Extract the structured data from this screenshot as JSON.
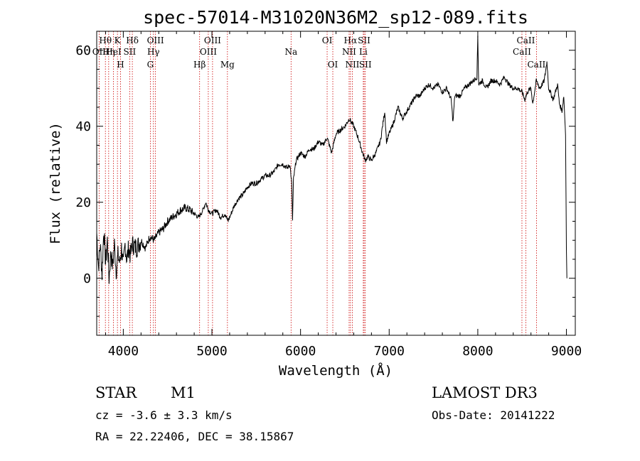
{
  "chart_data": {
    "type": "line",
    "title": "spec-57014-M31020N36M2_sp12-089.fits",
    "xlabel": "Wavelength (Å)",
    "ylabel": "Flux (relative)",
    "xlim": [
      3700,
      9100
    ],
    "ylim": [
      -15,
      65
    ],
    "x_ticks": [
      4000,
      5000,
      6000,
      7000,
      8000,
      9000
    ],
    "y_ticks": [
      0,
      20,
      40,
      60
    ],
    "series": [
      {
        "name": "flux",
        "points": [
          [
            3700,
            12
          ],
          [
            3720,
            3
          ],
          [
            3740,
            9
          ],
          [
            3760,
            1
          ],
          [
            3780,
            13
          ],
          [
            3800,
            4
          ],
          [
            3820,
            10
          ],
          [
            3840,
            0
          ],
          [
            3860,
            7
          ],
          [
            3880,
            3
          ],
          [
            3900,
            9
          ],
          [
            3920,
            2
          ],
          [
            3940,
            6
          ],
          [
            3960,
            4
          ],
          [
            3980,
            8
          ],
          [
            4000,
            3
          ],
          [
            4020,
            9
          ],
          [
            4040,
            5
          ],
          [
            4060,
            8
          ],
          [
            4080,
            6
          ],
          [
            4100,
            9
          ],
          [
            4150,
            8
          ],
          [
            4200,
            10
          ],
          [
            4250,
            8
          ],
          [
            4300,
            11
          ],
          [
            4350,
            10
          ],
          [
            4400,
            12
          ],
          [
            4450,
            13
          ],
          [
            4500,
            15
          ],
          [
            4550,
            16
          ],
          [
            4600,
            17
          ],
          [
            4650,
            18
          ],
          [
            4700,
            18.5
          ],
          [
            4750,
            18
          ],
          [
            4800,
            17
          ],
          [
            4850,
            16
          ],
          [
            4900,
            18
          ],
          [
            4930,
            20
          ],
          [
            4960,
            18
          ],
          [
            5000,
            17
          ],
          [
            5050,
            18
          ],
          [
            5100,
            16
          ],
          [
            5150,
            17
          ],
          [
            5180,
            15
          ],
          [
            5200,
            16
          ],
          [
            5250,
            19
          ],
          [
            5300,
            21
          ],
          [
            5350,
            22
          ],
          [
            5400,
            24
          ],
          [
            5450,
            25
          ],
          [
            5500,
            25
          ],
          [
            5550,
            26
          ],
          [
            5600,
            27
          ],
          [
            5650,
            27
          ],
          [
            5700,
            28
          ],
          [
            5750,
            30
          ],
          [
            5800,
            30
          ],
          [
            5850,
            29
          ],
          [
            5880,
            30
          ],
          [
            5900,
            25
          ],
          [
            5910,
            15
          ],
          [
            5920,
            26
          ],
          [
            5950,
            31
          ],
          [
            6000,
            33
          ],
          [
            6050,
            32
          ],
          [
            6100,
            34
          ],
          [
            6150,
            34
          ],
          [
            6200,
            36
          ],
          [
            6250,
            35
          ],
          [
            6300,
            37
          ],
          [
            6350,
            33
          ],
          [
            6380,
            36
          ],
          [
            6400,
            38
          ],
          [
            6450,
            39
          ],
          [
            6500,
            40
          ],
          [
            6550,
            42
          ],
          [
            6600,
            40
          ],
          [
            6650,
            37
          ],
          [
            6700,
            33
          ],
          [
            6730,
            31
          ],
          [
            6760,
            32
          ],
          [
            6800,
            31
          ],
          [
            6850,
            33
          ],
          [
            6900,
            36
          ],
          [
            6950,
            44
          ],
          [
            6970,
            36
          ],
          [
            7000,
            38
          ],
          [
            7050,
            41
          ],
          [
            7100,
            45
          ],
          [
            7150,
            42
          ],
          [
            7200,
            44
          ],
          [
            7250,
            46
          ],
          [
            7300,
            48
          ],
          [
            7350,
            48
          ],
          [
            7400,
            50
          ],
          [
            7450,
            51
          ],
          [
            7500,
            50
          ],
          [
            7550,
            51
          ],
          [
            7600,
            49
          ],
          [
            7650,
            50
          ],
          [
            7700,
            47
          ],
          [
            7720,
            41
          ],
          [
            7740,
            48
          ],
          [
            7800,
            48
          ],
          [
            7850,
            50
          ],
          [
            7900,
            51
          ],
          [
            7950,
            52
          ],
          [
            7990,
            53
          ],
          [
            8000,
            64
          ],
          [
            8010,
            51
          ],
          [
            8050,
            52
          ],
          [
            8100,
            50
          ],
          [
            8150,
            52
          ],
          [
            8200,
            52
          ],
          [
            8250,
            51
          ],
          [
            8300,
            53
          ],
          [
            8350,
            51
          ],
          [
            8400,
            50
          ],
          [
            8450,
            50
          ],
          [
            8500,
            49
          ],
          [
            8530,
            47
          ],
          [
            8560,
            49
          ],
          [
            8600,
            50
          ],
          [
            8620,
            46
          ],
          [
            8660,
            52
          ],
          [
            8700,
            50
          ],
          [
            8750,
            52
          ],
          [
            8780,
            57
          ],
          [
            8800,
            50
          ],
          [
            8850,
            47
          ],
          [
            8900,
            51
          ],
          [
            8920,
            46
          ],
          [
            8950,
            44
          ],
          [
            8970,
            48
          ],
          [
            8990,
            38
          ],
          [
            9000,
            8
          ],
          [
            9005,
            0
          ]
        ]
      }
    ],
    "spectral_lines": [
      {
        "label": "Hθ",
        "x": 3798,
        "row": 0
      },
      {
        "label": "OII",
        "x": 3727,
        "row": 1
      },
      {
        "label": "Hη",
        "x": 3835,
        "row": 1
      },
      {
        "label": "K",
        "x": 3934,
        "row": 0
      },
      {
        "label": "H",
        "x": 3969,
        "row": 2
      },
      {
        "label": "Hδ",
        "x": 4102,
        "row": 0
      },
      {
        "label": "HeI",
        "x": 3889,
        "row": 1
      },
      {
        "label": "SII",
        "x": 4072,
        "row": 1
      },
      {
        "label": "OIII",
        "x": 4363,
        "row": 0
      },
      {
        "label": "Hγ",
        "x": 4340,
        "row": 1
      },
      {
        "label": "G",
        "x": 4305,
        "row": 2
      },
      {
        "label": "OIII",
        "x": 5007,
        "row": 0
      },
      {
        "label": "OIII",
        "x": 4959,
        "row": 1
      },
      {
        "label": "Hβ",
        "x": 4861,
        "row": 2
      },
      {
        "label": "Mg",
        "x": 5175,
        "row": 2
      },
      {
        "label": "Na",
        "x": 5893,
        "row": 1
      },
      {
        "label": "OI",
        "x": 6300,
        "row": 0
      },
      {
        "label": "OI",
        "x": 6364,
        "row": 2
      },
      {
        "label": "Hα",
        "x": 6563,
        "row": 0
      },
      {
        "label": "SII",
        "x": 6717,
        "row": 0
      },
      {
        "label": "NII",
        "x": 6548,
        "row": 1
      },
      {
        "label": "Li",
        "x": 6708,
        "row": 1
      },
      {
        "label": "NII",
        "x": 6584,
        "row": 2
      },
      {
        "label": "SII",
        "x": 6731,
        "row": 2
      },
      {
        "label": "CaII",
        "x": 8542,
        "row": 0
      },
      {
        "label": "CaII",
        "x": 8498,
        "row": 1
      },
      {
        "label": "CaII",
        "x": 8662,
        "row": 2
      }
    ]
  },
  "info": {
    "class": "STAR",
    "subclass": "M1",
    "survey": "LAMOST DR3",
    "cz": "cz = -3.6 ± 3.3 km/s",
    "obs_date": "Obs-Date: 20141222",
    "coords": "RA =  22.22406, DEC =  38.15867"
  },
  "colors": {
    "line": "#000000",
    "marker": "#cc0000",
    "background": "#ffffff"
  }
}
